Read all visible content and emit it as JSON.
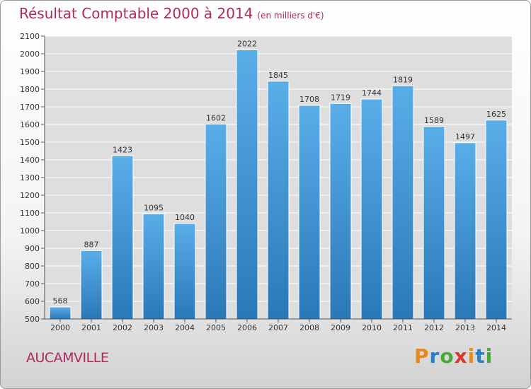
{
  "title": "Résultat Comptable 2000 à 2014",
  "unit": "(en milliers d'€)",
  "commune": "AUCAMVILLE",
  "brand": {
    "letters": [
      "P",
      "r",
      "o",
      "x",
      "i",
      "t",
      "i"
    ],
    "colors": [
      "#e8891c",
      "#2a7fc4",
      "#4aa83a",
      "#d63a2a",
      "#e8891c",
      "#2a7fc4",
      "#4aa83a"
    ]
  },
  "chart_data": {
    "type": "bar",
    "categories": [
      "2000",
      "2001",
      "2002",
      "2003",
      "2004",
      "2005",
      "2006",
      "2007",
      "2008",
      "2009",
      "2010",
      "2011",
      "2012",
      "2013",
      "2014"
    ],
    "values": [
      568,
      887,
      1423,
      1095,
      1040,
      1602,
      2022,
      1845,
      1708,
      1719,
      1744,
      1819,
      1589,
      1497,
      1625
    ],
    "ylim": [
      500,
      2100
    ],
    "yticks": [
      500,
      600,
      700,
      800,
      900,
      1000,
      1100,
      1200,
      1300,
      1400,
      1500,
      1600,
      1700,
      1800,
      1900,
      2000,
      2100
    ],
    "grid": true,
    "bar_color_top": "#5aaee8",
    "bar_color_bottom": "#2a78b8"
  }
}
